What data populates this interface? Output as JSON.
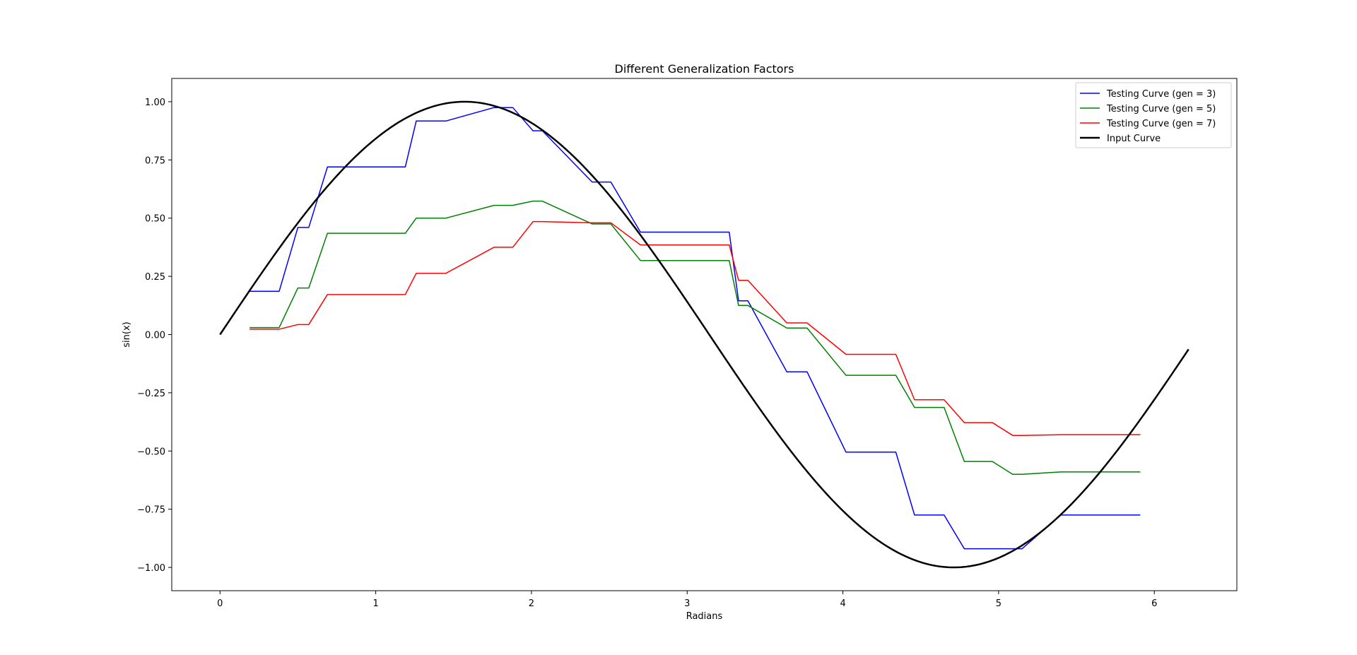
{
  "chart_data": {
    "type": "line",
    "title": "Different Generalization Factors",
    "xlabel": "Radians",
    "ylabel": "sin(x)",
    "xlim": [
      -0.31,
      6.53
    ],
    "ylim": [
      -1.1,
      1.1
    ],
    "xticks": [
      0,
      1,
      2,
      3,
      4,
      5,
      6
    ],
    "xtick_labels": [
      "0",
      "1",
      "2",
      "3",
      "4",
      "5",
      "6"
    ],
    "yticks": [
      1.0,
      0.75,
      0.5,
      0.25,
      0.0,
      -0.25,
      -0.5,
      -0.75,
      -1.0
    ],
    "ytick_labels": [
      "1.00",
      "0.75",
      "0.50",
      "0.25",
      "0.00",
      "−0.25",
      "−0.50",
      "−0.75",
      "−1.00"
    ],
    "grid": false,
    "legend_position": "top-right",
    "series": [
      {
        "name": "Testing Curve (gen = 3)",
        "color": "#0000ff",
        "line_width": 1.5,
        "points": [
          [
            0.19,
            0.186
          ],
          [
            0.38,
            0.186
          ],
          [
            0.5,
            0.46
          ],
          [
            0.57,
            0.46
          ],
          [
            0.69,
            0.72
          ],
          [
            1.19,
            0.72
          ],
          [
            1.26,
            0.917
          ],
          [
            1.45,
            0.917
          ],
          [
            1.76,
            0.975
          ],
          [
            1.88,
            0.975
          ],
          [
            2.01,
            0.875
          ],
          [
            2.07,
            0.875
          ],
          [
            2.39,
            0.655
          ],
          [
            2.51,
            0.655
          ],
          [
            2.7,
            0.44
          ],
          [
            3.27,
            0.44
          ],
          [
            3.33,
            0.145
          ],
          [
            3.39,
            0.145
          ],
          [
            3.64,
            -0.16
          ],
          [
            3.77,
            -0.16
          ],
          [
            4.02,
            -0.505
          ],
          [
            4.34,
            -0.505
          ],
          [
            4.46,
            -0.775
          ],
          [
            4.65,
            -0.775
          ],
          [
            4.78,
            -0.92
          ],
          [
            5.15,
            -0.92
          ],
          [
            5.4,
            -0.775
          ],
          [
            5.91,
            -0.775
          ]
        ]
      },
      {
        "name": "Testing Curve (gen = 5)",
        "color": "#008000",
        "line_width": 1.5,
        "points": [
          [
            0.19,
            0.03
          ],
          [
            0.38,
            0.03
          ],
          [
            0.5,
            0.2
          ],
          [
            0.57,
            0.2
          ],
          [
            0.69,
            0.435
          ],
          [
            1.19,
            0.435
          ],
          [
            1.26,
            0.5
          ],
          [
            1.45,
            0.5
          ],
          [
            1.76,
            0.555
          ],
          [
            1.88,
            0.555
          ],
          [
            2.01,
            0.573
          ],
          [
            2.07,
            0.573
          ],
          [
            2.39,
            0.475
          ],
          [
            2.51,
            0.475
          ],
          [
            2.7,
            0.318
          ],
          [
            3.27,
            0.318
          ],
          [
            3.33,
            0.125
          ],
          [
            3.39,
            0.125
          ],
          [
            3.64,
            0.028
          ],
          [
            3.77,
            0.028
          ],
          [
            4.02,
            -0.175
          ],
          [
            4.34,
            -0.175
          ],
          [
            4.46,
            -0.313
          ],
          [
            4.65,
            -0.313
          ],
          [
            4.78,
            -0.545
          ],
          [
            4.96,
            -0.545
          ],
          [
            5.09,
            -0.6
          ],
          [
            5.15,
            -0.6
          ],
          [
            5.4,
            -0.59
          ],
          [
            5.91,
            -0.59
          ]
        ]
      },
      {
        "name": "Testing Curve (gen = 7)",
        "color": "#ff0000",
        "line_width": 1.5,
        "points": [
          [
            0.19,
            0.023
          ],
          [
            0.38,
            0.023
          ],
          [
            0.5,
            0.043
          ],
          [
            0.57,
            0.043
          ],
          [
            0.69,
            0.172
          ],
          [
            1.19,
            0.172
          ],
          [
            1.26,
            0.263
          ],
          [
            1.45,
            0.263
          ],
          [
            1.76,
            0.375
          ],
          [
            1.88,
            0.375
          ],
          [
            2.01,
            0.485
          ],
          [
            2.07,
            0.485
          ],
          [
            2.39,
            0.48
          ],
          [
            2.51,
            0.48
          ],
          [
            2.7,
            0.385
          ],
          [
            3.27,
            0.385
          ],
          [
            3.33,
            0.233
          ],
          [
            3.39,
            0.233
          ],
          [
            3.64,
            0.05
          ],
          [
            3.77,
            0.05
          ],
          [
            4.02,
            -0.085
          ],
          [
            4.34,
            -0.085
          ],
          [
            4.46,
            -0.28
          ],
          [
            4.65,
            -0.28
          ],
          [
            4.78,
            -0.378
          ],
          [
            4.96,
            -0.378
          ],
          [
            5.09,
            -0.433
          ],
          [
            5.15,
            -0.433
          ],
          [
            5.4,
            -0.43
          ],
          [
            5.91,
            -0.43
          ]
        ]
      },
      {
        "name": "Input Curve",
        "color": "#000000",
        "line_width": 2.5,
        "function": "sin",
        "x_start": 0,
        "x_end": 6.22
      }
    ]
  }
}
